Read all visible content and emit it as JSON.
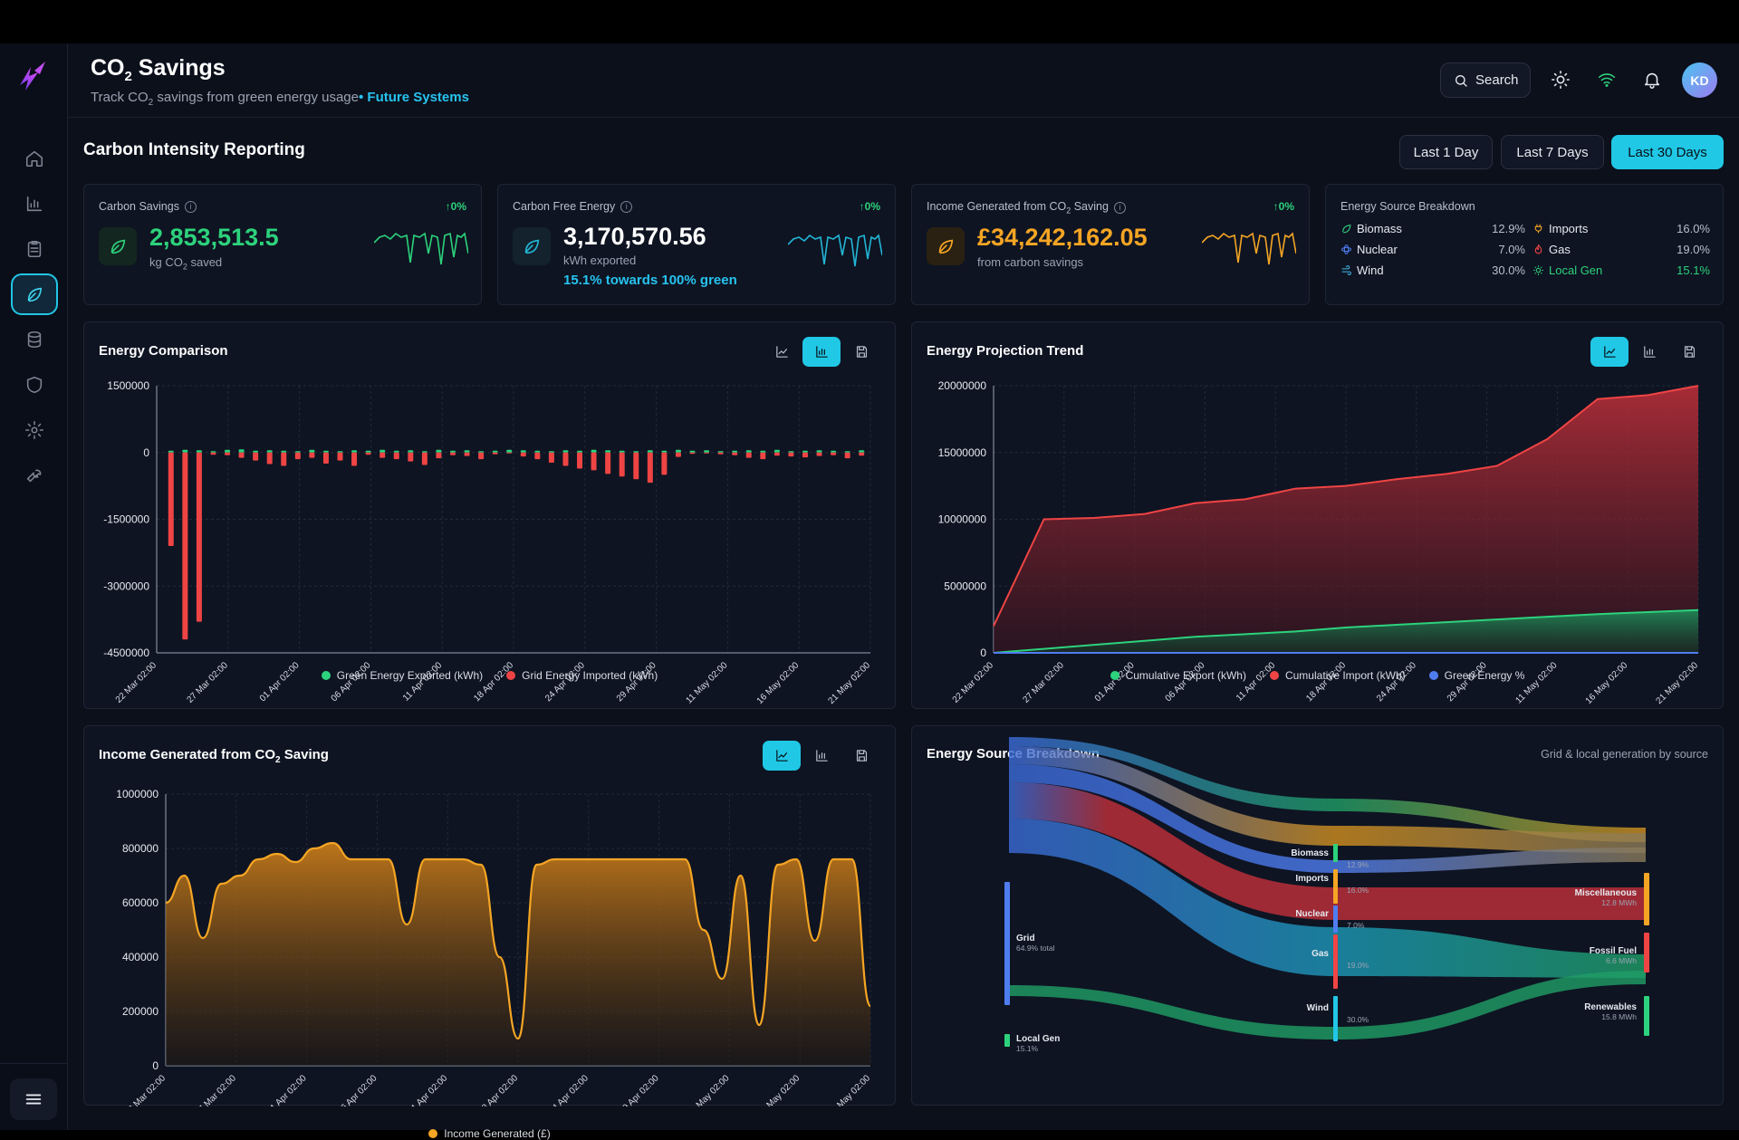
{
  "header": {
    "title_main": "CO",
    "title_sub": "2",
    "title_rest": " Savings",
    "subtitle_pre": "Track CO",
    "subtitle_sub": "2",
    "subtitle_post": " savings from green energy usage",
    "subtitle_bullet": "• ",
    "subtitle_brand": "Future Systems",
    "search_label": "Search",
    "avatar_initials": "KD"
  },
  "sidebar": {
    "items": [
      "home-icon",
      "bar-chart-icon",
      "clipboard-icon",
      "leaf-icon",
      "database-icon",
      "shield-icon",
      "gear-icon",
      "wrench-icon"
    ],
    "active": "leaf-icon"
  },
  "page": {
    "section_title": "Carbon Intensity Reporting",
    "ranges": [
      "Last 1 Day",
      "Last 7 Days",
      "Last 30 Days"
    ],
    "active_range": "Last 30 Days"
  },
  "kpis": [
    {
      "label": "Carbon Savings",
      "change": "↑0%",
      "value": "2,853,513.5",
      "unit_pre": "kg CO",
      "unit_sub": "2",
      "unit_post": " saved",
      "color": "#2dd27c",
      "extra": ""
    },
    {
      "label": "Carbon Free Energy",
      "change": "↑0%",
      "value": "3,170,570.56",
      "unit_pre": "kWh exported",
      "unit_sub": "",
      "unit_post": "",
      "color": "#ffffff",
      "extra": "15.1% towards 100% green"
    },
    {
      "label_pre": "Income Generated from CO",
      "label_sub": "2",
      "label_post": " Saving",
      "change": "↑0%",
      "value": "£34,242,162.05",
      "unit_pre": "from carbon savings",
      "unit_sub": "",
      "unit_post": "",
      "color": "#f5a524",
      "extra": ""
    }
  ],
  "source_card": {
    "title": "Energy Source Breakdown",
    "left": [
      {
        "name": "Biomass",
        "pct": "12.9%",
        "icon": "leaf-icon",
        "color": "#2dd27c"
      },
      {
        "name": "Nuclear",
        "pct": "7.0%",
        "icon": "atom-icon",
        "color": "#4f7df0"
      },
      {
        "name": "Wind",
        "pct": "30.0%",
        "icon": "wind-icon",
        "color": "#3fb6e8"
      }
    ],
    "right": [
      {
        "name": "Imports",
        "pct": "16.0%",
        "icon": "plug-icon",
        "color": "#f5a524"
      },
      {
        "name": "Gas",
        "pct": "19.0%",
        "icon": "flame-icon",
        "color": "#ef4444"
      },
      {
        "name": "Local Gen",
        "pct": "15.1%",
        "icon": "sun-icon",
        "color": "#2dd27c",
        "highlight": true
      }
    ]
  },
  "charts": {
    "energy_comparison": {
      "title": "Energy Comparison",
      "legend": [
        "Green Energy Exported (kWh)",
        "Grid Energy Imported (kWh)"
      ],
      "legend_colors": [
        "#2dd27c",
        "#ef4444"
      ]
    },
    "projection": {
      "title": "Energy Projection Trend",
      "legend": [
        "Cumulative Export (kWh)",
        "Cumulative Import (kWh)",
        "Green Energy %"
      ],
      "legend_colors": [
        "#2dd27c",
        "#ef4444",
        "#4f7df0"
      ]
    },
    "income": {
      "title_pre": "Income Generated from CO",
      "title_sub": "2",
      "title_post": " Saving",
      "legend": [
        "Income Generated (£)"
      ],
      "legend_colors": [
        "#f5a524"
      ]
    },
    "sankey": {
      "title": "Energy Source Breakdown",
      "subtitle": "Grid & local generation by source"
    }
  },
  "chart_data": [
    {
      "type": "bar",
      "title": "Energy Comparison",
      "x_ticks": [
        "22 Mar 02:00",
        "27 Mar 02:00",
        "01 Apr 02:00",
        "06 Apr 02:00",
        "11 Apr 02:00",
        "18 Apr 02:00",
        "24 Apr 02:00",
        "29 Apr 02:00",
        "11 May 02:00",
        "16 May 02:00",
        "21 May 02:00"
      ],
      "y_ticks": [
        "1500000",
        "0",
        "-1500000",
        "-3000000",
        "-4500000"
      ],
      "ylim": [
        -4500000,
        1500000
      ],
      "series": [
        {
          "name": "Green Energy Exported (kWh)",
          "values": [
            40000,
            60000,
            50000,
            30000,
            60000,
            70000,
            40000,
            50000,
            40000,
            30000,
            60000,
            40000,
            30000,
            50000,
            40000,
            60000,
            40000,
            50000,
            30000,
            60000,
            40000,
            50000,
            30000,
            40000,
            60000,
            50000,
            40000,
            30000,
            50000,
            40000,
            60000,
            50000,
            40000,
            30000,
            50000,
            40000,
            60000,
            40000,
            50000,
            30000,
            40000,
            50000,
            40000,
            60000,
            30000,
            40000,
            50000,
            40000,
            30000,
            50000
          ]
        },
        {
          "name": "Grid Energy Imported (kWh)",
          "values": [
            -2100000,
            -4200000,
            -3800000,
            -50000,
            -60000,
            -120000,
            -180000,
            -260000,
            -300000,
            -150000,
            -120000,
            -250000,
            -180000,
            -300000,
            -50000,
            -120000,
            -150000,
            -200000,
            -280000,
            -130000,
            -60000,
            -80000,
            -150000,
            -40000,
            -20000,
            -90000,
            -150000,
            -230000,
            -300000,
            -360000,
            -400000,
            -480000,
            -540000,
            -600000,
            -680000,
            -500000,
            -100000,
            -30000,
            -20000,
            -40000,
            -60000,
            -120000,
            -150000,
            -70000,
            -90000,
            -110000,
            -80000,
            -60000,
            -130000,
            -70000
          ]
        }
      ]
    },
    {
      "type": "area",
      "title": "Energy Projection Trend",
      "x_ticks": [
        "22 Mar 02:00",
        "27 Mar 02:00",
        "01 Apr 02:00",
        "06 Apr 02:00",
        "11 Apr 02:00",
        "18 Apr 02:00",
        "24 Apr 02:00",
        "29 Apr 02:00",
        "11 May 02:00",
        "16 May 02:00",
        "21 May 02:00"
      ],
      "y_ticks": [
        "20000000",
        "15000000",
        "10000000",
        "5000000",
        "0"
      ],
      "ylim": [
        0,
        20000000
      ],
      "series": [
        {
          "name": "Cumulative Import (kWh)",
          "values": [
            2000000,
            10000000,
            10100000,
            10400000,
            11200000,
            11500000,
            12300000,
            12500000,
            13000000,
            13400000,
            14000000,
            16000000,
            19000000,
            19300000,
            20000000
          ]
        },
        {
          "name": "Cumulative Export (kWh)",
          "values": [
            0,
            300000,
            600000,
            900000,
            1200000,
            1400000,
            1600000,
            1900000,
            2100000,
            2300000,
            2500000,
            2700000,
            2900000,
            3050000,
            3200000
          ]
        },
        {
          "name": "Green Energy %",
          "values": [
            0,
            0,
            0,
            0,
            0,
            0,
            0,
            0,
            0,
            0,
            0,
            0,
            0,
            0,
            0
          ]
        }
      ]
    },
    {
      "type": "area",
      "title": "Income Generated from CO₂ Saving",
      "x_ticks": [
        "22 Mar 02:00",
        "27 Mar 02:00",
        "01 Apr 02:00",
        "06 Apr 02:00",
        "11 Apr 02:00",
        "18 Apr 02:00",
        "24 Apr 02:00",
        "29 Apr 02:00",
        "11 May 02:00",
        "16 May 02:00",
        "21 May 02:00"
      ],
      "y_ticks": [
        "1000000",
        "800000",
        "600000",
        "400000",
        "200000",
        "0"
      ],
      "ylim": [
        0,
        1000000
      ],
      "series": [
        {
          "name": "Income Generated (£)",
          "values": [
            600000,
            700000,
            470000,
            670000,
            700000,
            760000,
            780000,
            750000,
            800000,
            820000,
            760000,
            760000,
            760000,
            520000,
            760000,
            760000,
            760000,
            740000,
            400000,
            100000,
            740000,
            760000,
            760000,
            760000,
            760000,
            760000,
            760000,
            760000,
            760000,
            500000,
            320000,
            700000,
            150000,
            740000,
            760000,
            460000,
            760000,
            760000,
            220000
          ]
        }
      ]
    },
    {
      "type": "sankey",
      "title": "Energy Source Breakdown",
      "nodes": [
        {
          "name": "Grid",
          "detail": "64.9% total",
          "color": "#4f7df0"
        },
        {
          "name": "Local Gen",
          "detail": "15.1%",
          "color": "#2dd27c"
        },
        {
          "name": "Biomass",
          "detail": "12.9%",
          "color": "#2dd27c"
        },
        {
          "name": "Imports",
          "detail": "16.0%",
          "color": "#f5a524"
        },
        {
          "name": "Nuclear",
          "detail": "7.0%",
          "color": "#4f7df0"
        },
        {
          "name": "Gas",
          "detail": "19.0%",
          "color": "#ef4444"
        },
        {
          "name": "Wind",
          "detail": "30.0%",
          "color": "#22c6e6"
        },
        {
          "name": "Miscellaneous",
          "detail": "12.8 MWh",
          "color": "#f5a524"
        },
        {
          "name": "Fossil Fuel",
          "detail": "6.6 MWh",
          "color": "#ef4444"
        },
        {
          "name": "Renewables",
          "detail": "15.8 MWh",
          "color": "#2dd27c"
        }
      ]
    }
  ]
}
